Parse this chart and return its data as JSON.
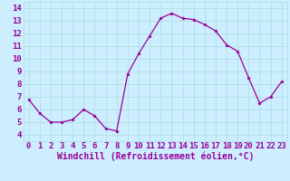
{
  "x": [
    0,
    1,
    2,
    3,
    4,
    5,
    6,
    7,
    8,
    9,
    10,
    11,
    12,
    13,
    14,
    15,
    16,
    17,
    18,
    19,
    20,
    21,
    22,
    23
  ],
  "y": [
    6.8,
    5.7,
    5.0,
    5.0,
    5.2,
    6.0,
    5.5,
    4.5,
    4.3,
    8.8,
    10.4,
    11.8,
    13.2,
    13.6,
    13.2,
    13.1,
    12.7,
    12.2,
    11.1,
    10.6,
    8.5,
    6.5,
    7.0,
    8.2
  ],
  "line_color": "#990099",
  "marker": "*",
  "marker_size": 2.5,
  "bg_color": "#cceeff",
  "grid_color": "#aadddd",
  "axis_bg": "#cceeff",
  "xlabel": "Windchill (Refroidissement éolien,°C)",
  "xlim": [
    -0.5,
    23.5
  ],
  "ylim": [
    3.5,
    14.5
  ],
  "yticks": [
    4,
    5,
    6,
    7,
    8,
    9,
    10,
    11,
    12,
    13,
    14
  ],
  "xticks": [
    0,
    1,
    2,
    3,
    4,
    5,
    6,
    7,
    8,
    9,
    10,
    11,
    12,
    13,
    14,
    15,
    16,
    17,
    18,
    19,
    20,
    21,
    22,
    23
  ],
  "xlabel_color": "#990099",
  "tick_color": "#990099",
  "font_size": 6.5,
  "xlabel_fontsize": 7,
  "linewidth": 0.9
}
